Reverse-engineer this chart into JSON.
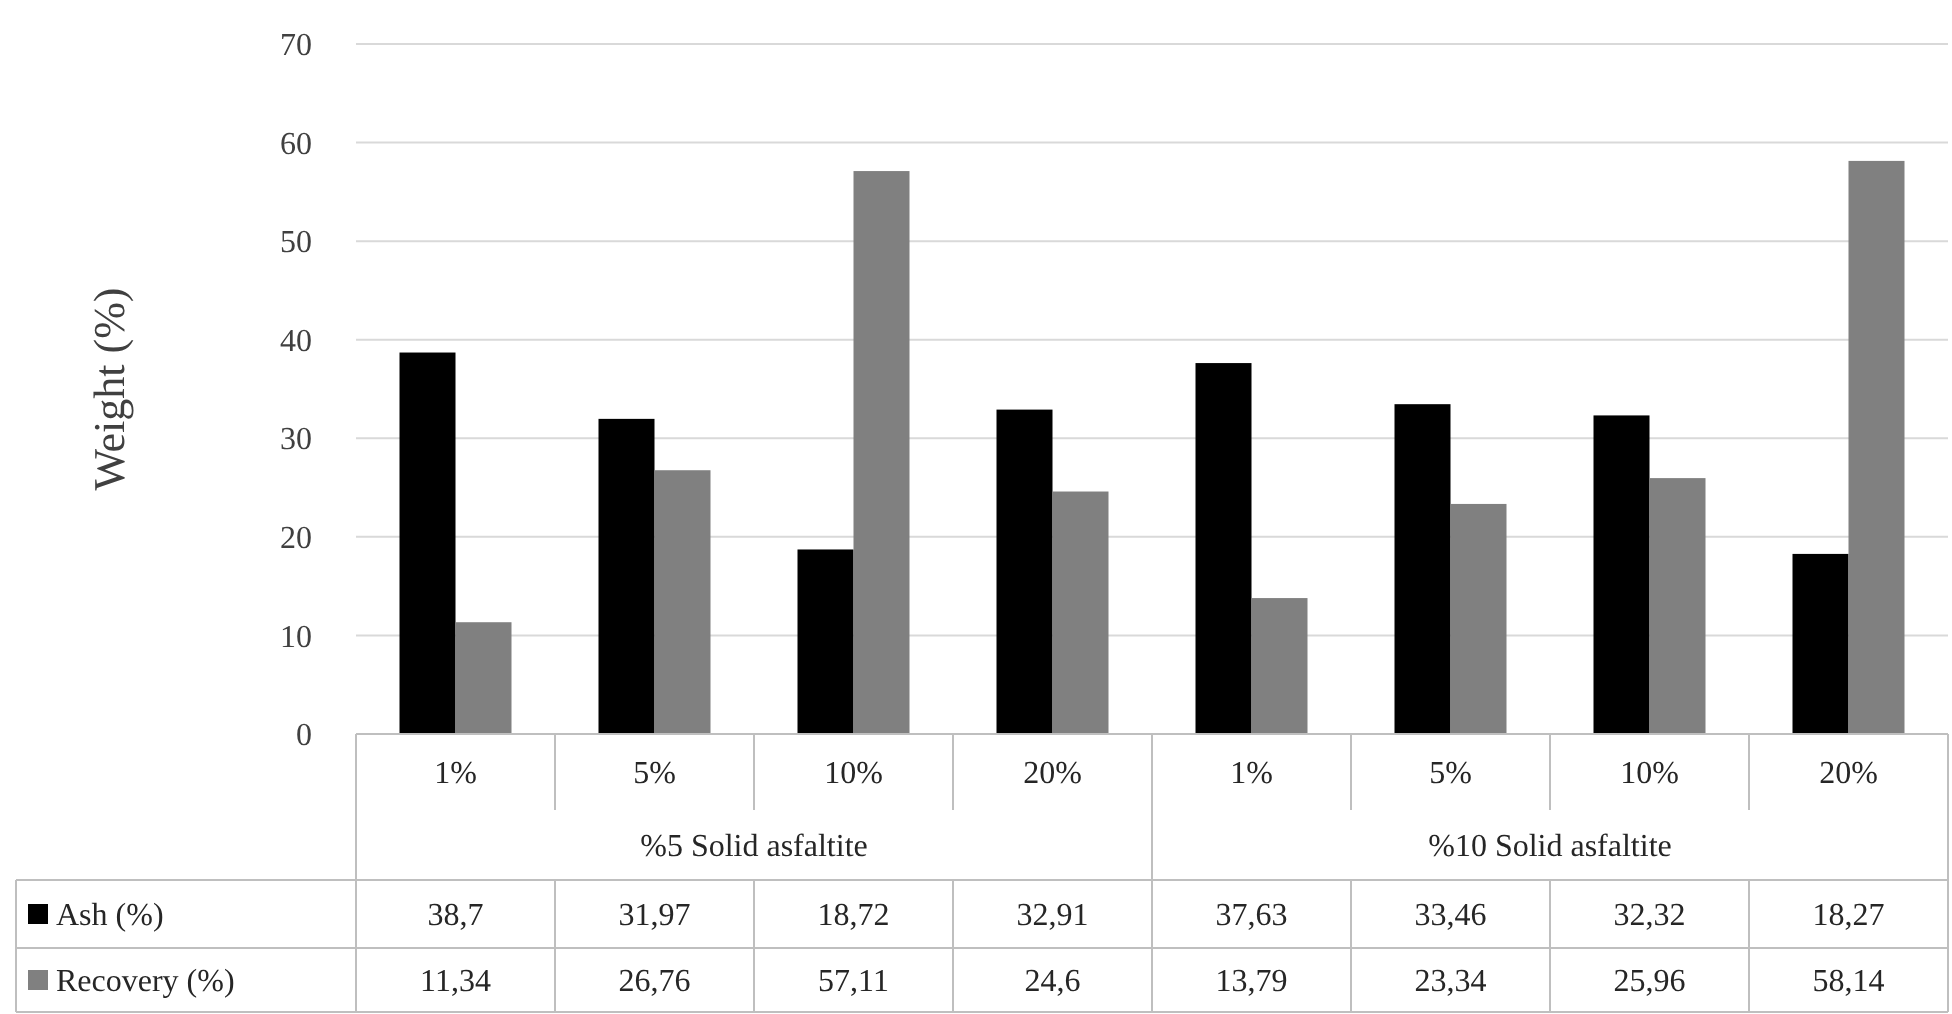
{
  "chart_data": {
    "type": "bar",
    "ylabel": "Weight (%)",
    "categories": [
      "1%",
      "5%",
      "10%",
      "20%",
      "1%",
      "5%",
      "10%",
      "20%"
    ],
    "annotations": [
      "%5 Solid asfaltite",
      "%10 Solid asfaltite"
    ],
    "series": [
      {
        "name": "Ash (%)",
        "color": "#000000",
        "values": [
          38.7,
          31.97,
          18.72,
          32.91,
          37.63,
          33.46,
          32.32,
          18.27
        ],
        "value_labels": [
          "38,7",
          "31,97",
          "18,72",
          "32,91",
          "37,63",
          "33,46",
          "32,32",
          "18,27"
        ]
      },
      {
        "name": "Recovery (%)",
        "color": "#808080",
        "values": [
          11.34,
          26.76,
          57.11,
          24.6,
          13.79,
          23.34,
          25.96,
          58.14
        ],
        "value_labels": [
          "11,34",
          "26,76",
          "57,11",
          "24,6",
          "13,79",
          "23,34",
          "25,96",
          "58,14"
        ]
      }
    ],
    "ylim": [
      0,
      70
    ],
    "yticks": [
      0,
      10,
      20,
      30,
      40,
      50,
      60,
      70
    ],
    "grid": "y",
    "legend": "bottom left"
  }
}
